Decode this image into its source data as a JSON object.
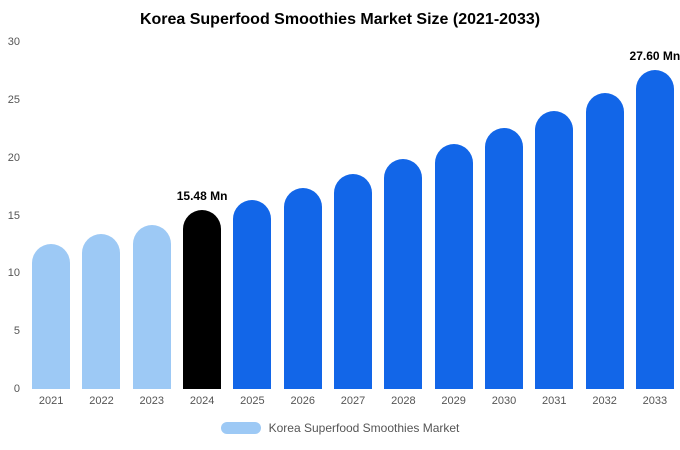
{
  "title": "Korea Superfood Smoothies Market Size (2021-2033)",
  "legend": {
    "label": "Korea Superfood Smoothies Market",
    "swatch_color": "#9DC9F5"
  },
  "colors": {
    "historical": "#9DC9F5",
    "base_year": "#000000",
    "forecast": "#1266E8",
    "axis_text": "#555555"
  },
  "chart_data": {
    "type": "bar",
    "title": "Korea Superfood Smoothies Market Size (2021-2033)",
    "categories": [
      "2021",
      "2022",
      "2023",
      "2024",
      "2025",
      "2026",
      "2027",
      "2028",
      "2029",
      "2030",
      "2031",
      "2032",
      "2033"
    ],
    "values": [
      12.5,
      13.4,
      14.2,
      15.48,
      16.3,
      17.4,
      18.6,
      19.9,
      21.2,
      22.6,
      24.0,
      25.6,
      27.6
    ],
    "bar_colors": [
      "#9DC9F5",
      "#9DC9F5",
      "#9DC9F5",
      "#000000",
      "#1266E8",
      "#1266E8",
      "#1266E8",
      "#1266E8",
      "#1266E8",
      "#1266E8",
      "#1266E8",
      "#1266E8",
      "#1266E8"
    ],
    "data_labels": [
      "",
      "",
      "",
      "15.48 Mn",
      "",
      "",
      "",
      "",
      "",
      "",
      "",
      "",
      "27.60 Mn"
    ],
    "xlabel": "",
    "ylabel": "",
    "ylim": [
      0,
      30
    ],
    "yticks": [
      0,
      5,
      10,
      15,
      20,
      25,
      30
    ],
    "grid": false,
    "legend_position": "bottom",
    "legend_entries": [
      "Korea Superfood Smoothies Market"
    ]
  }
}
